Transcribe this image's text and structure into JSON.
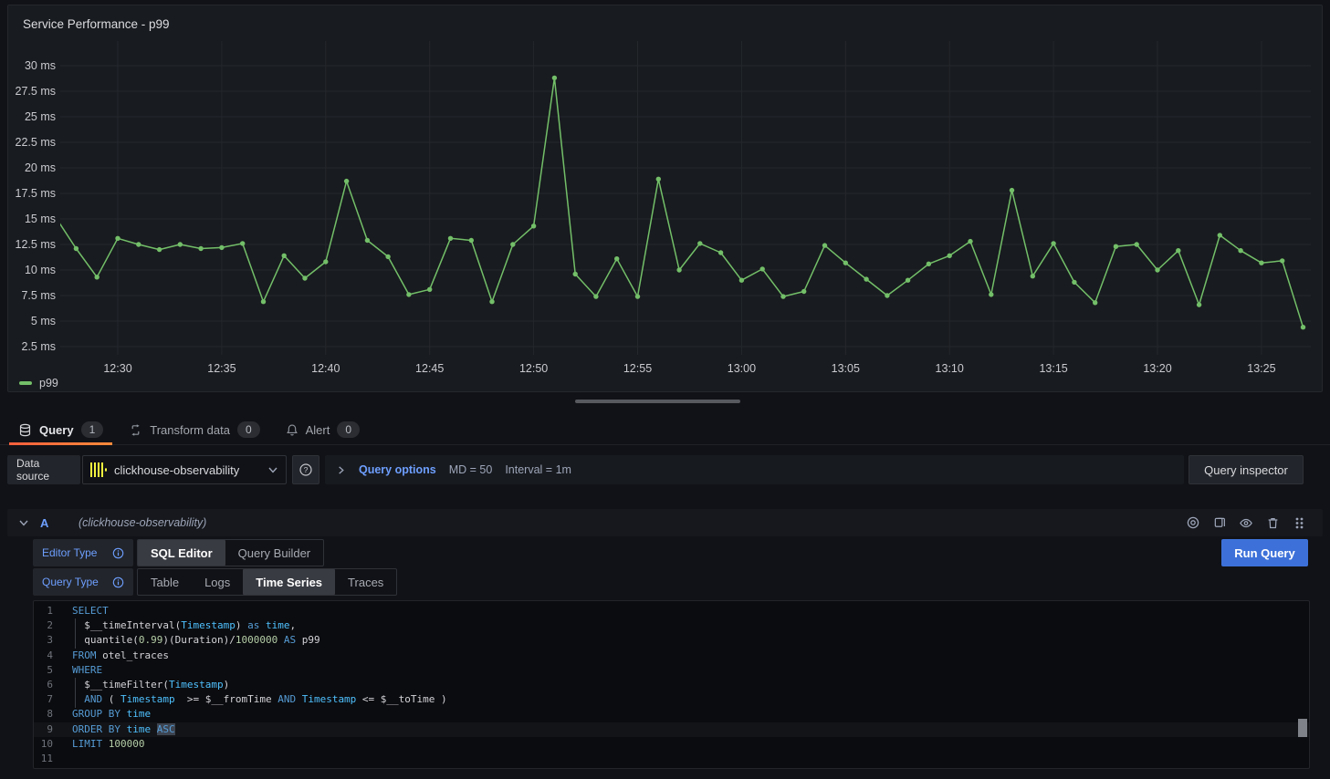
{
  "panel": {
    "title": "Service Performance - p99",
    "legend_label": "p99"
  },
  "chart_data": {
    "type": "line",
    "title": "Service Performance - p99",
    "unit": "ms",
    "grid": true,
    "legend_position": "bottom-left",
    "x_range": [
      "12:27",
      "13:27"
    ],
    "y_axis_range_approx": [
      1.7,
      32.4
    ],
    "x_ticks": [
      "12:30",
      "12:35",
      "12:40",
      "12:45",
      "12:50",
      "12:55",
      "13:00",
      "13:05",
      "13:10",
      "13:15",
      "13:20",
      "13:25"
    ],
    "y_ticks": [
      30,
      27.5,
      25,
      22.5,
      20,
      17.5,
      15,
      12.5,
      10,
      7.5,
      5,
      2.5
    ],
    "series": [
      {
        "name": "p99",
        "color": "#73BF69",
        "x": [
          "12:27",
          "12:28",
          "12:29",
          "12:30",
          "12:31",
          "12:32",
          "12:33",
          "12:34",
          "12:35",
          "12:36",
          "12:37",
          "12:38",
          "12:39",
          "12:40",
          "12:41",
          "12:42",
          "12:43",
          "12:44",
          "12:45",
          "12:46",
          "12:47",
          "12:48",
          "12:49",
          "12:50",
          "12:51",
          "12:52",
          "12:53",
          "12:54",
          "12:55",
          "12:56",
          "12:57",
          "12:58",
          "12:59",
          "13:00",
          "13:01",
          "13:02",
          "13:03",
          "13:04",
          "13:05",
          "13:06",
          "13:07",
          "13:08",
          "13:09",
          "13:10",
          "13:11",
          "13:12",
          "13:13",
          "13:14",
          "13:15",
          "13:16",
          "13:17",
          "13:18",
          "13:19",
          "13:20",
          "13:21",
          "13:22",
          "13:23",
          "13:24",
          "13:25",
          "13:26",
          "13:27"
        ],
        "values": [
          15.2,
          12.1,
          9.3,
          13.1,
          12.5,
          12.0,
          12.5,
          12.1,
          12.2,
          12.6,
          6.9,
          11.4,
          9.2,
          10.8,
          18.7,
          12.9,
          11.3,
          7.6,
          8.1,
          13.1,
          12.9,
          6.9,
          12.5,
          14.3,
          28.8,
          9.6,
          7.4,
          11.1,
          7.4,
          18.9,
          10.0,
          12.6,
          11.7,
          9.0,
          10.1,
          7.4,
          7.9,
          12.4,
          10.7,
          9.1,
          7.5,
          9.0,
          10.6,
          11.4,
          12.8,
          7.6,
          17.8,
          9.4,
          12.6,
          8.8,
          6.8,
          12.3,
          12.5,
          10.0,
          11.9,
          6.6,
          13.4,
          11.9,
          10.7,
          10.9,
          4.4
        ]
      }
    ]
  },
  "tabs": [
    {
      "icon": "database-icon",
      "label": "Query",
      "count": "1",
      "active": true
    },
    {
      "icon": "transform-icon",
      "label": "Transform data",
      "count": "0",
      "active": false
    },
    {
      "icon": "bell-icon",
      "label": "Alert",
      "count": "0",
      "active": false
    }
  ],
  "toolbar": {
    "datasource_label": "Data source",
    "datasource_value": "clickhouse-observability",
    "query_options_label": "Query options",
    "max_data_points": "MD = 50",
    "interval": "Interval = 1m",
    "inspector_label": "Query inspector"
  },
  "query_row": {
    "ref_id": "A",
    "datasource_hint": "(clickhouse-observability)"
  },
  "editor": {
    "editor_type_label": "Editor Type",
    "editor_type_options": [
      "SQL Editor",
      "Query Builder"
    ],
    "editor_type_selected": "SQL Editor",
    "query_type_label": "Query Type",
    "query_type_options": [
      "Table",
      "Logs",
      "Time Series",
      "Traces"
    ],
    "query_type_selected": "Time Series",
    "run_query_label": "Run Query"
  },
  "sql_editor": {
    "selected_text": "ASC",
    "current_line": 9,
    "lines": [
      {
        "n": 1,
        "tokens": [
          [
            "k",
            "SELECT"
          ]
        ]
      },
      {
        "n": 2,
        "indent": true,
        "tokens": [
          [
            "p",
            "  $__timeInterval("
          ],
          [
            "i",
            "Timestamp"
          ],
          [
            "p",
            ") "
          ],
          [
            "k",
            "as"
          ],
          [
            "p",
            " "
          ],
          [
            "i",
            "time"
          ],
          [
            "p",
            ","
          ]
        ]
      },
      {
        "n": 3,
        "indent": true,
        "tokens": [
          [
            "p",
            "  quantile("
          ],
          [
            "n",
            "0.99"
          ],
          [
            "p",
            ")(Duration)/"
          ],
          [
            "n",
            "1000000"
          ],
          [
            "p",
            " "
          ],
          [
            "k",
            "AS"
          ],
          [
            "p",
            " p99"
          ]
        ]
      },
      {
        "n": 4,
        "tokens": [
          [
            "k",
            "FROM"
          ],
          [
            "p",
            " otel_traces"
          ]
        ]
      },
      {
        "n": 5,
        "tokens": [
          [
            "k",
            "WHERE"
          ]
        ]
      },
      {
        "n": 6,
        "indent": true,
        "tokens": [
          [
            "p",
            "  $__timeFilter("
          ],
          [
            "i",
            "Timestamp"
          ],
          [
            "p",
            ")"
          ]
        ]
      },
      {
        "n": 7,
        "indent": true,
        "tokens": [
          [
            "p",
            "  "
          ],
          [
            "k",
            "AND"
          ],
          [
            "p",
            " ( "
          ],
          [
            "i",
            "Timestamp"
          ],
          [
            "p",
            "  >= $__fromTime "
          ],
          [
            "k",
            "AND"
          ],
          [
            "p",
            " "
          ],
          [
            "i",
            "Timestamp"
          ],
          [
            "p",
            " <= $__toTime )"
          ]
        ]
      },
      {
        "n": 8,
        "tokens": [
          [
            "k",
            "GROUP BY"
          ],
          [
            "p",
            " "
          ],
          [
            "i",
            "time"
          ]
        ]
      },
      {
        "n": 9,
        "tokens": [
          [
            "k",
            "ORDER BY"
          ],
          [
            "p",
            " "
          ],
          [
            "i",
            "time"
          ],
          [
            "p",
            " "
          ],
          [
            "ks",
            "ASC"
          ]
        ]
      },
      {
        "n": 10,
        "tokens": [
          [
            "k",
            "LIMIT"
          ],
          [
            "p",
            " "
          ],
          [
            "n",
            "100000"
          ]
        ]
      },
      {
        "n": 11,
        "tokens": []
      }
    ]
  },
  "colors": {
    "page_bg": "#111217",
    "panel_bg": "#181b1f",
    "series_green": "#73BF69",
    "link_blue": "#6e9fff",
    "run_button_blue": "#3d71d9",
    "tab_underline_gradient": [
      "#f55f3c",
      "#ff8a3b"
    ],
    "clickhouse_yellow": "#f3f53f",
    "code_keyword": "#569cd6",
    "code_identifier": "#4fc1ff",
    "code_number": "#b5cea8"
  }
}
